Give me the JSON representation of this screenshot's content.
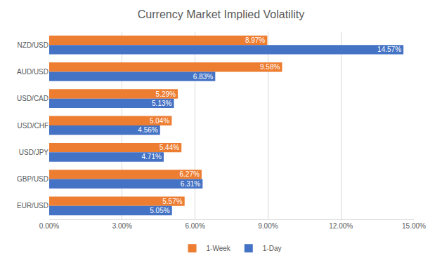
{
  "chart_data": {
    "type": "bar",
    "orientation": "horizontal",
    "title": "Currency Market Implied Volatility",
    "categories": [
      "NZD/USD",
      "AUD/USD",
      "USD/CAD",
      "USD/CHF",
      "USD/JPY",
      "GBP/USD",
      "EUR/USD"
    ],
    "series": [
      {
        "name": "1-Week",
        "color": "#ED7D31",
        "values": [
          8.97,
          9.58,
          5.29,
          5.04,
          5.44,
          6.27,
          5.57
        ],
        "value_labels": [
          "8.97%",
          "9.58%",
          "5.29%",
          "5.04%",
          "5.44%",
          "6.27%",
          "5.57%"
        ]
      },
      {
        "name": "1-Day",
        "color": "#4472C4",
        "values": [
          14.57,
          6.83,
          5.13,
          4.56,
          4.71,
          6.31,
          5.05
        ],
        "value_labels": [
          "14.57%",
          "6.83%",
          "5.13%",
          "4.56%",
          "4.71%",
          "6.31%",
          "5.05%"
        ]
      }
    ],
    "xlim": [
      0,
      15
    ],
    "xticks": [
      {
        "value": 0,
        "label": "0.00%"
      },
      {
        "value": 3,
        "label": "3.00%"
      },
      {
        "value": 6,
        "label": "6.00%"
      },
      {
        "value": 9,
        "label": "9.00%"
      },
      {
        "value": 12,
        "label": "12.00%"
      },
      {
        "value": 15,
        "label": "15.00%"
      }
    ],
    "grid": true,
    "legend": "bottom",
    "data_labels": true
  }
}
